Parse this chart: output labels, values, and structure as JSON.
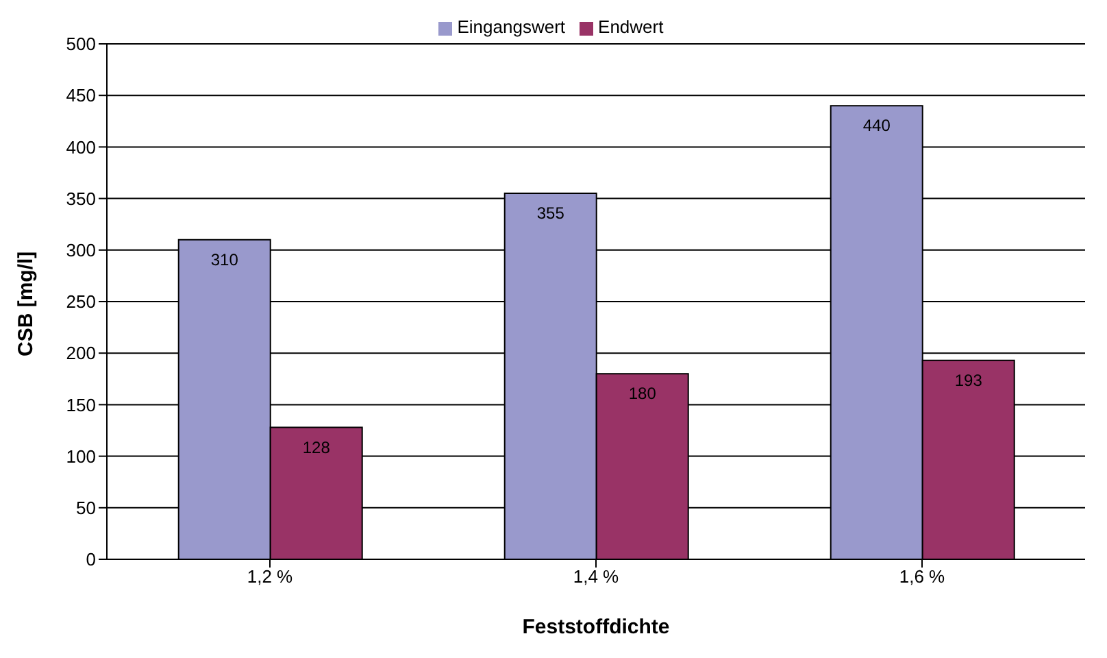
{
  "chart_data": {
    "type": "bar",
    "xlabel": "Feststoffdichte",
    "ylabel": "CSB [mg/l]",
    "categories": [
      "1,2 %",
      "1,4 %",
      "1,6 %"
    ],
    "series": [
      {
        "name": "Eingangswert",
        "color": "#9999cc",
        "values": [
          310,
          355,
          440
        ]
      },
      {
        "name": "Endwert",
        "color": "#993366",
        "values": [
          128,
          180,
          193
        ]
      }
    ],
    "ylim": [
      0,
      500
    ],
    "yticks": [
      0,
      50,
      100,
      150,
      200,
      250,
      300,
      350,
      400,
      450,
      500
    ],
    "grid": "y",
    "legend": "top",
    "data_labels": true
  }
}
